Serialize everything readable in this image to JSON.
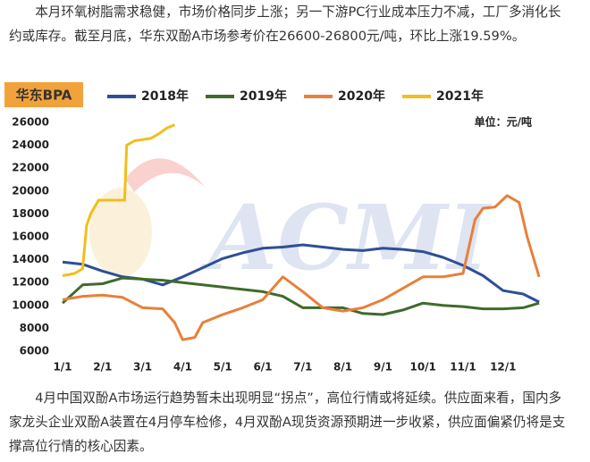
{
  "paragraphs": [
    "本月环氧树脂需求稳健，市场价格同步上涨；另一下游PC行业成本压力不减，工厂多消化长约或库存。截至月底，华东双酚A市场参考价在26600-26800元/吨，环比上涨19.59%。",
    "4月中国双酚A市场运行趋势暂未出现明显“拐点”，高位行情或将延续。供应面来看，国内多家龙头企业双酚A装置在4月停车检修，4月双酚A现货资源预期进一步收紧，供应面偏紧仍将是支撑高位行情的核心因素。"
  ],
  "chart_data": {
    "type": "line",
    "title": "华东BPA",
    "unit": "单位：元/吨",
    "watermark": "ACMI",
    "xlim": [
      0,
      12
    ],
    "ylim": [
      6000,
      26000
    ],
    "xticks": [
      {
        "value": 0,
        "label": "1/1"
      },
      {
        "value": 1,
        "label": "2/1"
      },
      {
        "value": 2,
        "label": "3/1"
      },
      {
        "value": 3,
        "label": "4/1"
      },
      {
        "value": 4,
        "label": "5/1"
      },
      {
        "value": 5,
        "label": "6/1"
      },
      {
        "value": 6,
        "label": "7/1"
      },
      {
        "value": 7,
        "label": "8/1"
      },
      {
        "value": 8,
        "label": "9/1"
      },
      {
        "value": 9,
        "label": "10/1"
      },
      {
        "value": 10,
        "label": "11/1"
      },
      {
        "value": 11,
        "label": "12/1"
      }
    ],
    "yticks": [
      6000,
      8000,
      10000,
      12000,
      14000,
      16000,
      18000,
      20000,
      22000,
      24000,
      26000
    ],
    "series": [
      {
        "name": "2018年",
        "color": "#2e4f96",
        "x": [
          0,
          0.5,
          1,
          1.5,
          2,
          2.5,
          3,
          3.5,
          4,
          4.5,
          5,
          5.5,
          6,
          6.5,
          7,
          7.5,
          8,
          8.5,
          9,
          9.5,
          10,
          10.5,
          11,
          11.5,
          11.9
        ],
        "values": [
          13800,
          13600,
          13000,
          12500,
          12300,
          11800,
          12500,
          13300,
          14100,
          14600,
          15000,
          15100,
          15300,
          15100,
          14900,
          14800,
          15000,
          14900,
          14700,
          14200,
          13500,
          12600,
          11300,
          11000,
          10300
        ]
      },
      {
        "name": "2019年",
        "color": "#3f6b2a",
        "x": [
          0,
          0.5,
          1,
          1.5,
          2,
          2.5,
          3,
          3.5,
          4,
          4.5,
          5,
          5.5,
          6,
          6.5,
          7,
          7.5,
          8,
          8.5,
          9,
          9.5,
          10,
          10.5,
          11,
          11.5,
          11.9
        ],
        "values": [
          10200,
          11800,
          11900,
          12400,
          12300,
          12200,
          12000,
          11800,
          11600,
          11400,
          11200,
          10800,
          9800,
          9800,
          9800,
          9300,
          9200,
          9600,
          10200,
          10000,
          9900,
          9700,
          9700,
          9800,
          10200
        ]
      },
      {
        "name": "2020年",
        "color": "#e8803a",
        "x": [
          0,
          0.5,
          1,
          1.5,
          2,
          2.5,
          2.8,
          3,
          3.3,
          3.5,
          4,
          4.5,
          5,
          5.5,
          6,
          6.5,
          7,
          7.5,
          8,
          8.5,
          9,
          9.5,
          10,
          10.3,
          10.5,
          10.8,
          11.1,
          11.4,
          11.6,
          11.9
        ],
        "values": [
          10500,
          10800,
          10900,
          10700,
          9800,
          9700,
          8500,
          7000,
          7200,
          8500,
          9200,
          9800,
          10500,
          12500,
          11200,
          9800,
          9500,
          9800,
          10500,
          11500,
          12500,
          12500,
          12800,
          17500,
          18500,
          18600,
          19600,
          19000,
          16000,
          12500
        ]
      },
      {
        "name": "2021年",
        "color": "#f2be1a",
        "x": [
          0,
          0.3,
          0.5,
          0.6,
          0.7,
          0.9,
          1.2,
          1.55,
          1.6,
          1.8,
          2.0,
          2.2,
          2.4,
          2.6,
          2.8
        ],
        "values": [
          12600,
          12800,
          13200,
          17000,
          18000,
          19200,
          19200,
          19200,
          24000,
          24400,
          24500,
          24600,
          25000,
          25500,
          25800
        ]
      }
    ]
  }
}
